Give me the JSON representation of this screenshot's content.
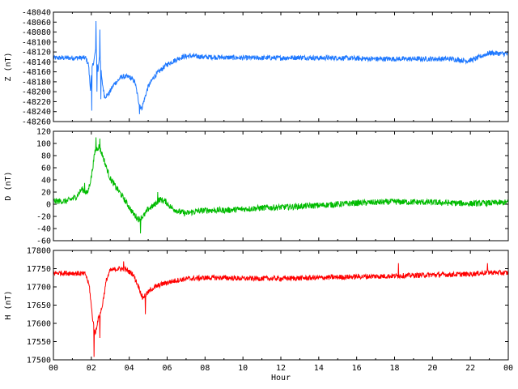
{
  "chart_data": [
    {
      "type": "line",
      "ylabel": "Z (nT)",
      "ylim": [
        -48260,
        -48040
      ],
      "yticks": [
        -48260,
        -48240,
        -48220,
        -48200,
        -48180,
        -48160,
        -48140,
        -48120,
        -48100,
        -48080,
        -48060,
        -48040
      ],
      "xlim": [
        0,
        24
      ],
      "grid": false,
      "series": [
        {
          "color": "#1e78ff",
          "x": [
            0,
            1,
            1.7,
            1.85,
            1.95,
            2.05,
            2.15,
            2.25,
            2.35,
            2.45,
            2.55,
            2.7,
            2.9,
            3.2,
            3.6,
            4.0,
            4.3,
            4.5,
            4.65,
            4.8,
            5.0,
            5.3,
            5.7,
            6.0,
            6.4,
            6.8,
            7.2,
            8,
            9,
            10,
            11,
            12,
            13,
            14,
            15,
            16,
            17,
            18,
            19,
            20,
            21,
            21.8,
            22.2,
            22.6,
            23,
            24
          ],
          "y": [
            -48132,
            -48132,
            -48132,
            -48145,
            -48195,
            -48150,
            -48135,
            -48110,
            -48160,
            -48120,
            -48175,
            -48210,
            -48205,
            -48185,
            -48170,
            -48170,
            -48180,
            -48220,
            -48235,
            -48215,
            -48190,
            -48170,
            -48155,
            -48145,
            -48137,
            -48130,
            -48128,
            -48130,
            -48131,
            -48132,
            -48132,
            -48132,
            -48131,
            -48132,
            -48132,
            -48133,
            -48134,
            -48134,
            -48134,
            -48134,
            -48134,
            -48138,
            -48135,
            -48128,
            -48122,
            -48124
          ],
          "noise": 5,
          "spikes": [
            [
              2.03,
              -48238
            ],
            [
              2.25,
              -48058
            ],
            [
              2.3,
              -48200
            ],
            [
              2.45,
              -48075
            ],
            [
              2.5,
              -48215
            ],
            [
              4.55,
              -48245
            ]
          ]
        }
      ]
    },
    {
      "type": "line",
      "ylabel": "D (nT)",
      "ylim": [
        -60,
        120
      ],
      "yticks": [
        -60,
        -40,
        -20,
        0,
        20,
        40,
        60,
        80,
        100,
        120
      ],
      "xlim": [
        0,
        24
      ],
      "grid": false,
      "series": [
        {
          "color": "#00bb00",
          "x": [
            0,
            0.7,
            1.2,
            1.5,
            1.8,
            2.0,
            2.2,
            2.4,
            2.6,
            2.8,
            3.0,
            3.3,
            3.6,
            3.9,
            4.2,
            4.5,
            4.8,
            5.0,
            5.3,
            5.6,
            5.9,
            6.2,
            6.6,
            7.0,
            7.5,
            8,
            9,
            10,
            11,
            12,
            14,
            16,
            18,
            20,
            22,
            24
          ],
          "y": [
            5,
            5,
            12,
            25,
            18,
            45,
            88,
            95,
            80,
            60,
            42,
            28,
            15,
            0,
            -15,
            -25,
            -18,
            -8,
            -2,
            8,
            5,
            -5,
            -12,
            -15,
            -12,
            -10,
            -10,
            -8,
            -6,
            -5,
            -2,
            2,
            4,
            3,
            1,
            3
          ],
          "noise": 5,
          "spikes": [
            [
              2.25,
              110
            ],
            [
              2.45,
              108
            ],
            [
              4.6,
              -48
            ],
            [
              1.65,
              35
            ],
            [
              5.5,
              20
            ]
          ]
        }
      ]
    },
    {
      "type": "line",
      "ylabel": "H (nT)",
      "ylim": [
        17500,
        17800
      ],
      "yticks": [
        17500,
        17550,
        17600,
        17650,
        17700,
        17750,
        17800
      ],
      "xlim": [
        0,
        24
      ],
      "xticks": [
        "00",
        "02",
        "04",
        "06",
        "08",
        "10",
        "12",
        "14",
        "16",
        "18",
        "20",
        "22",
        "00"
      ],
      "xlabel": "Hour",
      "grid": false,
      "series": [
        {
          "color": "#ff0000",
          "x": [
            0,
            1,
            1.7,
            1.9,
            2.05,
            2.2,
            2.35,
            2.55,
            2.8,
            3.0,
            3.4,
            3.8,
            4.2,
            4.5,
            4.7,
            4.9,
            5.2,
            5.6,
            6.0,
            6.5,
            7,
            8,
            9,
            10,
            11,
            12,
            14,
            16,
            18,
            20,
            22,
            23,
            24
          ],
          "y": [
            17738,
            17738,
            17735,
            17700,
            17620,
            17570,
            17610,
            17640,
            17720,
            17745,
            17750,
            17748,
            17735,
            17700,
            17670,
            17680,
            17695,
            17705,
            17712,
            17718,
            17722,
            17725,
            17725,
            17723,
            17723,
            17723,
            17725,
            17728,
            17730,
            17733,
            17735,
            17740,
            17738
          ],
          "noise": 7,
          "spikes": [
            [
              2.15,
              17508
            ],
            [
              2.45,
              17560
            ],
            [
              4.85,
              17625
            ],
            [
              3.7,
              17770
            ],
            [
              18.2,
              17765
            ],
            [
              22.9,
              17765
            ]
          ]
        }
      ]
    }
  ]
}
